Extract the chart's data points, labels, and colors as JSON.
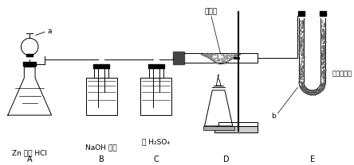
{
  "bg_color": "#ffffff",
  "labels": {
    "a": "a",
    "b": "b",
    "A": "A",
    "B": "B",
    "C": "C",
    "D": "D",
    "E": "E",
    "zn": "Zn 和稀 HCl",
    "naoh": "NaOH 溶液",
    "h2so4": "浓 H₂SO₄",
    "cuO": "氧化铜",
    "caso4": "无水硫酸铜"
  }
}
